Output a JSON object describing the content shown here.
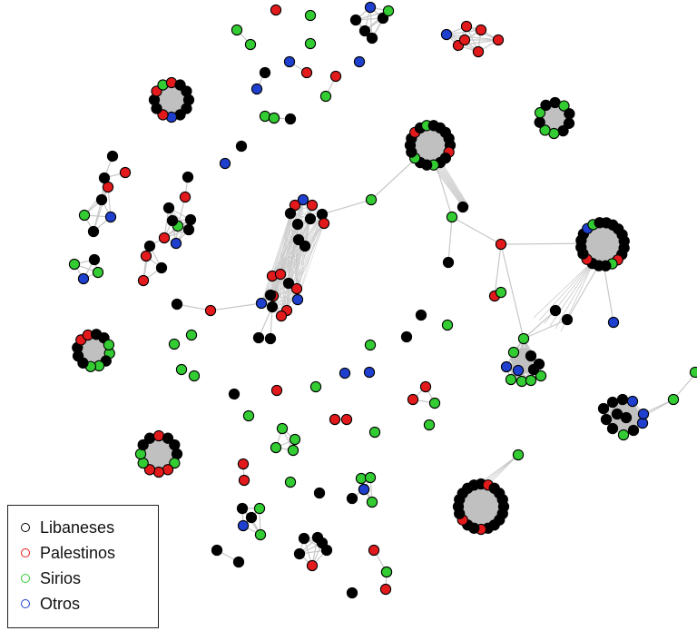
{
  "legend": {
    "items": [
      {
        "label": "Libaneses",
        "color": "#000000"
      },
      {
        "label": "Palestinos",
        "color": "#e31a1c"
      },
      {
        "label": "Sirios",
        "color": "#33cc33"
      },
      {
        "label": "Otros",
        "color": "#1f3fcf"
      }
    ]
  },
  "colors": {
    "edge": "#c8c8c8",
    "cluster_fill": "#c0c0c0",
    "node_stroke": "#000000"
  }
}
